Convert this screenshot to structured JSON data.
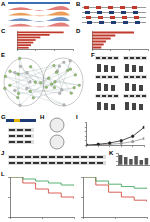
{
  "panels": [
    "A",
    "B",
    "C",
    "D",
    "E",
    "F",
    "G",
    "H",
    "I",
    "J",
    "K",
    "L"
  ],
  "chart_data": [
    {
      "type": "bar",
      "orientation": "horizontal",
      "categories": [
        null,
        null,
        null,
        null,
        null,
        null,
        null
      ],
      "values": [
        10,
        7,
        5,
        4,
        3.5,
        3,
        2.5
      ],
      "color": "#c0392b",
      "xlim": [
        0,
        12
      ],
      "xticks": [
        0,
        4,
        8,
        12
      ],
      "grid": false,
      "tick_labels": false
    },
    {
      "type": "bar",
      "orientation": "horizontal",
      "categories": [
        null,
        null,
        null,
        null,
        null,
        null
      ],
      "values": [
        9,
        5,
        4,
        3,
        2.5,
        2
      ],
      "color": "#c0392b",
      "xlim": [
        0,
        12
      ],
      "xticks": [
        0,
        4,
        8,
        12
      ],
      "grid": false,
      "tick_labels": false
    },
    {
      "type": "line",
      "x": [
        0,
        1,
        2,
        3,
        4,
        5
      ],
      "series": [
        {
          "color": "#222222",
          "values": [
            0,
            0.2,
            0.5,
            1,
            2,
            4
          ],
          "marker": "circle",
          "line_style": "solid"
        },
        {
          "color": "#999999",
          "values": [
            0,
            0.1,
            0.2,
            0.4,
            0.8,
            1.5
          ],
          "marker": "circle",
          "line_style": "solid"
        }
      ],
      "xlim": [
        0,
        5
      ],
      "xticks": [
        0,
        1,
        2,
        3,
        4,
        5
      ],
      "ylim": [
        0,
        5
      ],
      "yticks": [
        0,
        1,
        2,
        3,
        4,
        5
      ],
      "grid": false,
      "tick_labels": false
    },
    {
      "type": "bar",
      "categories": [
        null,
        null,
        null,
        null,
        null,
        null
      ],
      "values": [
        1,
        0.8,
        0.6,
        0.9,
        0.5,
        0.7
      ],
      "color": "#555555",
      "ylim": [
        0,
        1.2
      ],
      "yticks": [
        0,
        0.4,
        0.8,
        1.2
      ],
      "grid": false,
      "tick_labels": false
    },
    {
      "type": "line",
      "x": [
        0,
        2,
        4,
        6,
        8,
        10
      ],
      "series": [
        {
          "color": "#2e9e4f",
          "values": [
            1,
            0.95,
            0.9,
            0.85,
            0.8,
            0.78
          ],
          "marker": "none",
          "line_style": "steps"
        },
        {
          "color": "#d0392b",
          "values": [
            1,
            0.85,
            0.7,
            0.6,
            0.5,
            0.45
          ],
          "marker": "none",
          "line_style": "steps"
        }
      ],
      "xlim": [
        0,
        10
      ],
      "xticks": [
        0,
        5,
        10
      ],
      "ylim": [
        0,
        1
      ],
      "yticks": [
        0,
        0.5,
        1
      ],
      "grid": false,
      "tick_labels": false
    },
    {
      "type": "line",
      "x": [
        0,
        2,
        4,
        6,
        8,
        10
      ],
      "series": [
        {
          "color": "#2e9e4f",
          "values": [
            1,
            0.9,
            0.82,
            0.76,
            0.72,
            0.7
          ],
          "marker": "none",
          "line_style": "steps"
        },
        {
          "color": "#d0392b",
          "values": [
            1,
            0.8,
            0.62,
            0.5,
            0.42,
            0.38
          ],
          "marker": "none",
          "line_style": "steps"
        }
      ],
      "xlim": [
        0,
        10
      ],
      "xticks": [
        0,
        5,
        10
      ],
      "ylim": [
        0,
        1
      ],
      "yticks": [
        0,
        0.5,
        1
      ],
      "grid": false,
      "tick_labels": false
    }
  ]
}
